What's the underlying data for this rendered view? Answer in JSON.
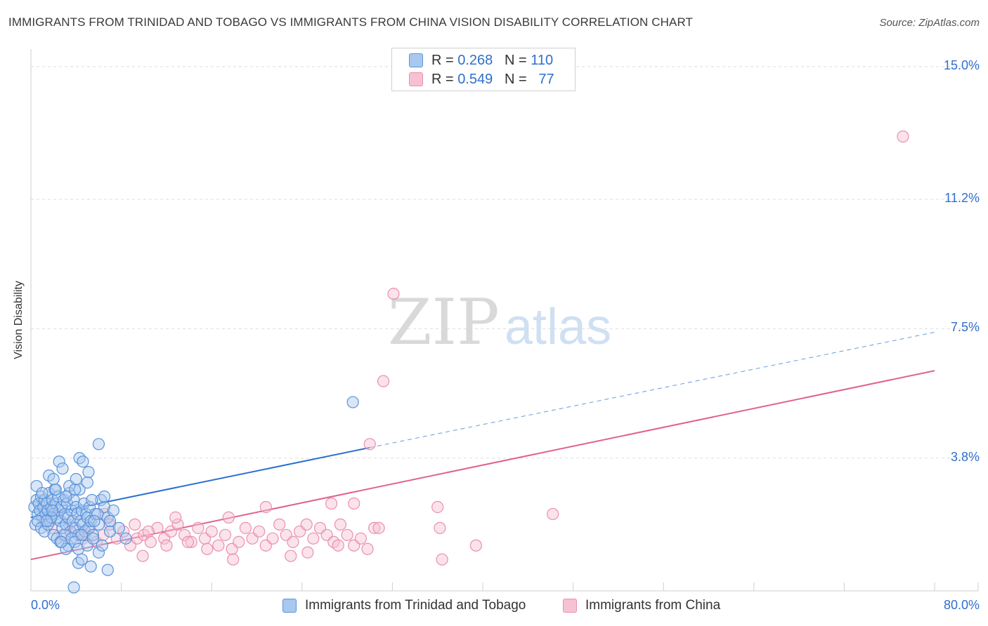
{
  "title": "IMMIGRANTS FROM TRINIDAD AND TOBAGO VS IMMIGRANTS FROM CHINA VISION DISABILITY CORRELATION CHART",
  "source": "Source: ZipAtlas.com",
  "watermark": {
    "zip": "ZIP",
    "atlas": "atlas"
  },
  "legend": {
    "r_label": "R =",
    "n_label": "N =",
    "rows": [
      {
        "r": "0.268",
        "n": "110"
      },
      {
        "r": "0.549",
        "n": "77"
      }
    ]
  },
  "chart_data": {
    "type": "scatter",
    "title": "IMMIGRANTS FROM TRINIDAD AND TOBAGO VS IMMIGRANTS FROM CHINA VISION DISABILITY CORRELATION CHART",
    "xlabel": "",
    "ylabel": "Vision Disability",
    "xlim": [
      0,
      80
    ],
    "ylim": [
      0,
      15.5
    ],
    "x_tick_labels": [
      "0.0%",
      "80.0%"
    ],
    "y_ticks": [
      3.8,
      7.5,
      11.2,
      15.0
    ],
    "y_tick_labels": [
      "3.8%",
      "7.5%",
      "11.2%",
      "15.0%"
    ],
    "colors": {
      "blue": "#5b93d9",
      "blue_fill": "#a9c8ef",
      "blue_line": "#2a6fd1",
      "pink": "#ea8fae",
      "pink_fill": "#f6c2d3",
      "pink_line": "#e0628e"
    },
    "series": [
      {
        "name": "Immigrants from Trinidad and Tobago",
        "color": "#5b93d9",
        "trend": {
          "x0": 0,
          "y0": 2.1,
          "x1": 30,
          "y1": 4.1,
          "dash_x1": 80,
          "dash_y1": 7.4
        },
        "points": [
          [
            0.3,
            2.4
          ],
          [
            0.5,
            2.6
          ],
          [
            0.6,
            2.2
          ],
          [
            0.7,
            2.5
          ],
          [
            0.8,
            2.3
          ],
          [
            0.9,
            2.7
          ],
          [
            1.0,
            2.1
          ],
          [
            1.1,
            2.4
          ],
          [
            1.2,
            2.6
          ],
          [
            1.3,
            2.2
          ],
          [
            1.4,
            2.5
          ],
          [
            1.5,
            2.3
          ],
          [
            1.6,
            2.8
          ],
          [
            1.7,
            2.0
          ],
          [
            1.8,
            2.4
          ],
          [
            1.9,
            2.6
          ],
          [
            2.0,
            2.2
          ],
          [
            2.1,
            2.9
          ],
          [
            2.2,
            2.5
          ],
          [
            2.3,
            2.1
          ],
          [
            2.4,
            2.7
          ],
          [
            2.5,
            2.3
          ],
          [
            2.6,
            2.0
          ],
          [
            2.7,
            2.4
          ],
          [
            2.8,
            1.8
          ],
          [
            2.9,
            2.6
          ],
          [
            3.0,
            2.2
          ],
          [
            3.1,
            1.9
          ],
          [
            3.2,
            2.5
          ],
          [
            3.3,
            2.1
          ],
          [
            3.4,
            2.8
          ],
          [
            3.5,
            1.7
          ],
          [
            3.6,
            2.3
          ],
          [
            3.7,
            2.0
          ],
          [
            3.8,
            2.6
          ],
          [
            3.9,
            1.8
          ],
          [
            4.0,
            2.4
          ],
          [
            4.1,
            2.2
          ],
          [
            4.2,
            1.6
          ],
          [
            4.3,
            2.9
          ],
          [
            4.4,
            2.0
          ],
          [
            4.5,
            2.3
          ],
          [
            4.6,
            1.9
          ],
          [
            4.7,
            2.5
          ],
          [
            4.8,
            1.7
          ],
          [
            4.9,
            2.2
          ],
          [
            5.0,
            2.1
          ],
          [
            5.1,
            1.8
          ],
          [
            5.2,
            2.4
          ],
          [
            5.3,
            2.0
          ],
          [
            5.5,
            1.6
          ],
          [
            5.7,
            2.2
          ],
          [
            6.0,
            1.9
          ],
          [
            6.2,
            2.6
          ],
          [
            6.5,
            2.4
          ],
          [
            6.8,
            2.1
          ],
          [
            7.0,
            1.7
          ],
          [
            7.3,
            2.3
          ],
          [
            0.4,
            1.9
          ],
          [
            0.6,
            2.0
          ],
          [
            0.9,
            1.8
          ],
          [
            1.2,
            1.7
          ],
          [
            1.5,
            1.9
          ],
          [
            1.8,
            2.1
          ],
          [
            2.0,
            1.6
          ],
          [
            2.3,
            1.5
          ],
          [
            2.6,
            1.4
          ],
          [
            3.0,
            1.6
          ],
          [
            3.3,
            1.3
          ],
          [
            3.6,
            1.5
          ],
          [
            3.9,
            1.4
          ],
          [
            4.2,
            1.2
          ],
          [
            4.5,
            1.6
          ],
          [
            5.0,
            1.3
          ],
          [
            5.5,
            1.5
          ],
          [
            6.0,
            1.1
          ],
          [
            0.5,
            3.0
          ],
          [
            1.0,
            2.8
          ],
          [
            1.6,
            3.3
          ],
          [
            2.2,
            2.9
          ],
          [
            2.5,
            3.7
          ],
          [
            2.8,
            3.5
          ],
          [
            3.4,
            3.0
          ],
          [
            3.9,
            2.9
          ],
          [
            4.3,
            3.8
          ],
          [
            4.6,
            3.7
          ],
          [
            5.1,
            3.4
          ],
          [
            5.4,
            2.6
          ],
          [
            5.9,
            2.2
          ],
          [
            2.0,
            3.2
          ],
          [
            3.1,
            2.7
          ],
          [
            4.0,
            3.2
          ],
          [
            5.0,
            3.1
          ],
          [
            6.5,
            2.7
          ],
          [
            7.0,
            2.0
          ],
          [
            7.8,
            1.8
          ],
          [
            8.4,
            1.5
          ],
          [
            5.6,
            2.0
          ],
          [
            6.3,
            1.3
          ],
          [
            4.2,
            0.8
          ],
          [
            3.1,
            1.2
          ],
          [
            2.7,
            1.4
          ],
          [
            4.5,
            0.9
          ],
          [
            5.3,
            0.7
          ],
          [
            6.8,
            0.6
          ],
          [
            3.8,
            0.1
          ],
          [
            6.0,
            4.2
          ],
          [
            28.5,
            5.4
          ],
          [
            1.4,
            2.0
          ],
          [
            1.9,
            2.3
          ]
        ]
      },
      {
        "name": "Immigrants from China",
        "color": "#ea8fae",
        "trend": {
          "x0": 0,
          "y0": 0.9,
          "x1": 80,
          "y1": 6.3
        },
        "points": [
          [
            1.2,
            2.0
          ],
          [
            1.8,
            1.8
          ],
          [
            2.3,
            2.2
          ],
          [
            2.8,
            1.6
          ],
          [
            3.4,
            1.9
          ],
          [
            4.0,
            1.7
          ],
          [
            4.6,
            1.5
          ],
          [
            5.2,
            1.8
          ],
          [
            5.8,
            1.4
          ],
          [
            6.4,
            1.6
          ],
          [
            7.0,
            1.9
          ],
          [
            7.6,
            1.5
          ],
          [
            8.2,
            1.7
          ],
          [
            8.8,
            1.3
          ],
          [
            9.4,
            1.5
          ],
          [
            10.0,
            1.6
          ],
          [
            10.6,
            1.4
          ],
          [
            11.2,
            1.8
          ],
          [
            11.8,
            1.5
          ],
          [
            12.4,
            1.7
          ],
          [
            13.0,
            1.9
          ],
          [
            13.6,
            1.6
          ],
          [
            14.2,
            1.4
          ],
          [
            14.8,
            1.8
          ],
          [
            15.4,
            1.5
          ],
          [
            16.0,
            1.7
          ],
          [
            16.6,
            1.3
          ],
          [
            17.2,
            1.6
          ],
          [
            17.8,
            1.2
          ],
          [
            18.4,
            1.4
          ],
          [
            19.0,
            1.8
          ],
          [
            19.6,
            1.5
          ],
          [
            20.2,
            1.7
          ],
          [
            20.8,
            1.3
          ],
          [
            21.4,
            1.5
          ],
          [
            22.0,
            1.9
          ],
          [
            22.6,
            1.6
          ],
          [
            23.2,
            1.4
          ],
          [
            23.8,
            1.7
          ],
          [
            24.4,
            1.9
          ],
          [
            25.0,
            1.5
          ],
          [
            25.6,
            1.8
          ],
          [
            26.2,
            1.6
          ],
          [
            26.8,
            1.4
          ],
          [
            27.4,
            1.9
          ],
          [
            28.0,
            1.6
          ],
          [
            28.6,
            1.3
          ],
          [
            29.2,
            1.5
          ],
          [
            29.8,
            1.2
          ],
          [
            30.4,
            1.8
          ],
          [
            6.5,
            2.2
          ],
          [
            9.2,
            1.9
          ],
          [
            12.8,
            2.1
          ],
          [
            15.6,
            1.2
          ],
          [
            17.5,
            2.1
          ],
          [
            20.8,
            2.4
          ],
          [
            24.5,
            1.1
          ],
          [
            26.6,
            2.5
          ],
          [
            28.6,
            2.5
          ],
          [
            30.8,
            1.8
          ],
          [
            36.0,
            2.4
          ],
          [
            36.2,
            1.8
          ],
          [
            36.4,
            0.9
          ],
          [
            39.4,
            1.3
          ],
          [
            46.2,
            2.2
          ],
          [
            9.9,
            1.0
          ],
          [
            12.0,
            1.3
          ],
          [
            13.9,
            1.4
          ],
          [
            17.9,
            0.9
          ],
          [
            23.0,
            1.0
          ],
          [
            27.2,
            1.3
          ],
          [
            30.0,
            4.2
          ],
          [
            31.2,
            6.0
          ],
          [
            32.1,
            8.5
          ],
          [
            77.2,
            13.0
          ],
          [
            4.8,
            1.6
          ],
          [
            10.4,
            1.7
          ]
        ]
      }
    ]
  },
  "bottom_legend": [
    "Immigrants from Trinidad and Tobago",
    "Immigrants from China"
  ]
}
